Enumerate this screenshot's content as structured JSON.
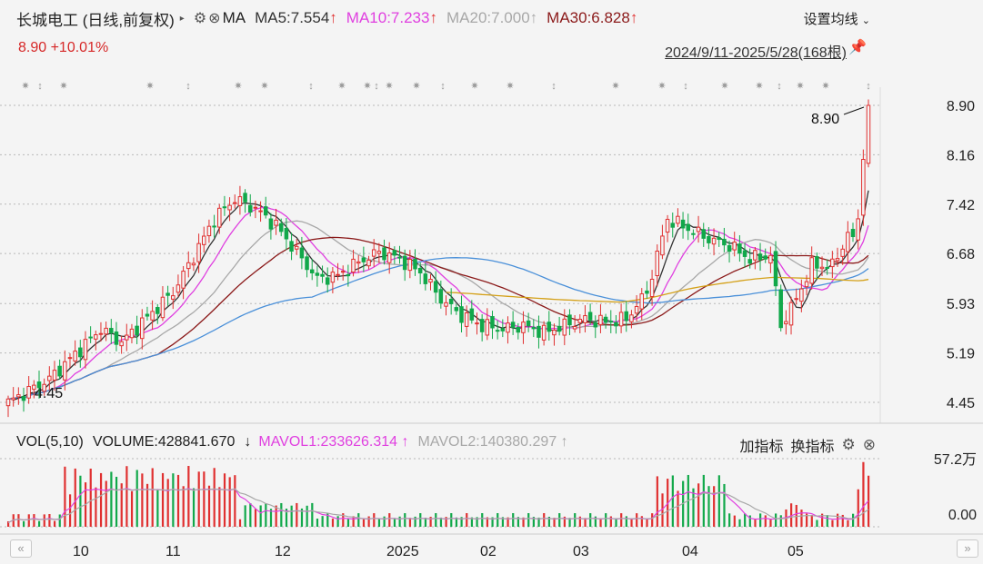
{
  "header": {
    "stock_name": "长城电工 (日线,前复权)",
    "indicator": "MA",
    "ma5": "MA5:7.554",
    "ma10": "MA10:7.233",
    "ma20": "MA20:7.000",
    "ma30": "MA30:6.828",
    "settings_label": "设置均线",
    "price_change": "8.90  +10.01%",
    "date_range": "2024/9/11-2025/5/28(168根)"
  },
  "price_axis": {
    "ticks": [
      "8.90",
      "8.16",
      "7.42",
      "6.68",
      "5.93",
      "5.19",
      "4.45"
    ],
    "max_label": "8.90",
    "min_label": "4.45"
  },
  "volume": {
    "title": "VOL(5,10)",
    "volume": "VOLUME:428841.670",
    "mavol1": "MAVOL1:233626.314",
    "mavol2": "MAVOL2:140380.297",
    "add_indicator": "加指标",
    "switch_indicator": "换指标",
    "axis_top": "57.2万",
    "axis_bottom": "0.00"
  },
  "x_axis": {
    "months": [
      "10",
      "11",
      "12",
      "2025",
      "02",
      "03",
      "04",
      "05"
    ]
  },
  "colors": {
    "up": "#e03030",
    "down": "#11a84a",
    "ma5": "#333333",
    "ma10": "#e040e0",
    "ma20": "#a8a8a8",
    "ma30": "#8b1a1a",
    "ma60": "#4a90d9",
    "ma120": "#d4a017"
  },
  "chart_data": {
    "type": "candlestick",
    "ylim": [
      4.45,
      8.9
    ],
    "first_close": 4.45,
    "last_close": 8.9,
    "bars": 168,
    "legend": [
      {
        "name": "MA5",
        "value": 7.554
      },
      {
        "name": "MA10",
        "value": 7.233
      },
      {
        "name": "MA20",
        "value": 7.0
      },
      {
        "name": "MA30",
        "value": 6.828
      }
    ]
  }
}
